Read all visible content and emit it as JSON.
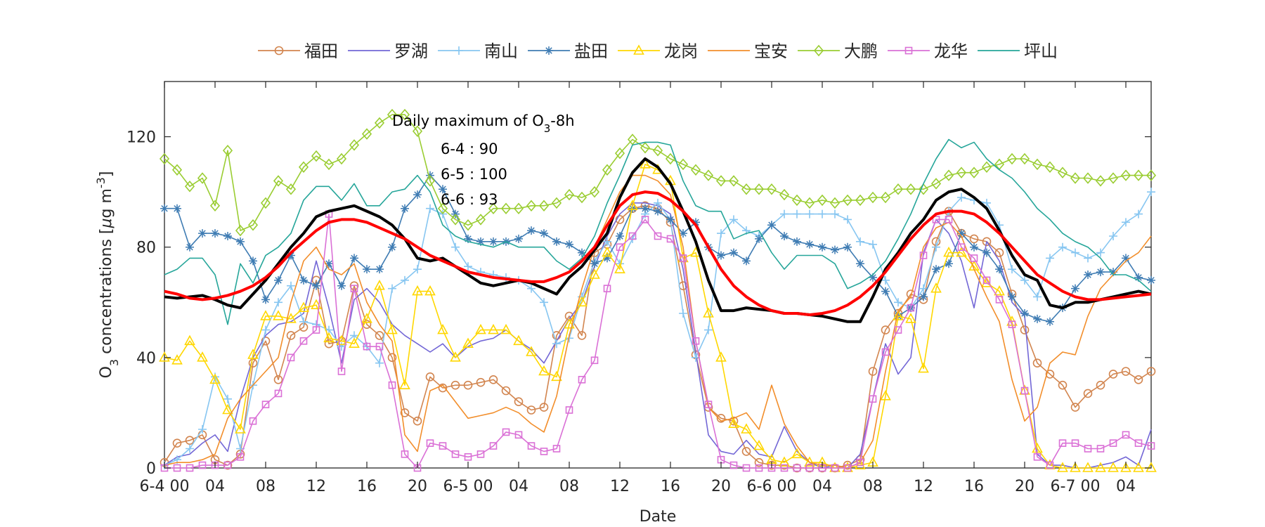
{
  "chart_data": {
    "type": "line",
    "title": "",
    "xlabel": "Date",
    "ylabel": "O3 concentrations [μg m-3]",
    "ylabel_parts": {
      "base": "O",
      "sub": "3",
      "mid": " concentrations [",
      "mu": "μ",
      "unit": "g m",
      "sup": "-3",
      "end": "]"
    },
    "ylim": [
      0,
      140
    ],
    "yticks": [
      0,
      40,
      80,
      120
    ],
    "xlim": [
      0,
      78
    ],
    "grid": false,
    "legend_position": "top",
    "x_ticks": [
      {
        "x": 0,
        "label": "6-4 00"
      },
      {
        "x": 4,
        "label": "04"
      },
      {
        "x": 8,
        "label": "08"
      },
      {
        "x": 12,
        "label": "12"
      },
      {
        "x": 16,
        "label": "16"
      },
      {
        "x": 20,
        "label": "20"
      },
      {
        "x": 24,
        "label": "6-5 00"
      },
      {
        "x": 28,
        "label": "04"
      },
      {
        "x": 32,
        "label": "08"
      },
      {
        "x": 36,
        "label": "12"
      },
      {
        "x": 40,
        "label": "16"
      },
      {
        "x": 44,
        "label": "20"
      },
      {
        "x": 48,
        "label": "6-6 00"
      },
      {
        "x": 52,
        "label": "04"
      },
      {
        "x": 56,
        "label": "08"
      },
      {
        "x": 60,
        "label": "12"
      },
      {
        "x": 64,
        "label": "16"
      },
      {
        "x": 68,
        "label": "20"
      },
      {
        "x": 72,
        "label": "6-7 00"
      },
      {
        "x": 76,
        "label": "04"
      }
    ],
    "annotation": {
      "title_parts": {
        "pre": "Daily maximum of O",
        "sub": "3",
        "post": "-8h"
      },
      "lines": [
        "6-4 : 90",
        "6-5 : 100",
        "6-6 : 93"
      ],
      "x": 18,
      "y": 124
    },
    "series": [
      {
        "name": "福田",
        "color": "#D2854F",
        "marker": "circle",
        "values": [
          2,
          9,
          10,
          12,
          3,
          1,
          5,
          38,
          46,
          32,
          48,
          51,
          68,
          45,
          46,
          66,
          52,
          48,
          40,
          20,
          17,
          33,
          29,
          30,
          30,
          31,
          32,
          28,
          24,
          21,
          22,
          48,
          55,
          48,
          78,
          81,
          90,
          94,
          95,
          94,
          89,
          66,
          41,
          22,
          18,
          17,
          6,
          2,
          1,
          1,
          0,
          0,
          0,
          0,
          1,
          3,
          35,
          50,
          56,
          63,
          61,
          82,
          93,
          85,
          83,
          82,
          78,
          63,
          50,
          38,
          34,
          30,
          22,
          27,
          30,
          34,
          35,
          32,
          35,
          43,
          62
        ]
      },
      {
        "name": "罗湖",
        "color": "#7367D6",
        "marker": "none",
        "values": [
          1,
          4,
          5,
          9,
          12,
          6,
          25,
          40,
          48,
          52,
          53,
          56,
          75,
          58,
          38,
          61,
          65,
          60,
          52,
          48,
          45,
          42,
          45,
          40,
          44,
          46,
          47,
          50,
          46,
          43,
          38,
          46,
          54,
          60,
          73,
          84,
          92,
          96,
          96,
          95,
          92,
          72,
          42,
          12,
          6,
          5,
          10,
          5,
          4,
          15,
          6,
          2,
          0,
          1,
          0,
          5,
          25,
          45,
          34,
          40,
          78,
          90,
          85,
          75,
          58,
          82,
          75,
          60,
          55,
          5,
          1,
          1,
          0,
          0,
          1,
          2,
          4,
          1,
          14,
          14,
          61
        ]
      },
      {
        "name": "南山",
        "color": "#87C6F1",
        "marker": "plus",
        "values": [
          1,
          3,
          7,
          14,
          33,
          25,
          7,
          30,
          50,
          60,
          66,
          53,
          52,
          50,
          44,
          48,
          44,
          38,
          65,
          68,
          72,
          94,
          92,
          80,
          73,
          71,
          70,
          69,
          68,
          65,
          60,
          45,
          47,
          62,
          75,
          82,
          74,
          83,
          92,
          96,
          90,
          56,
          40,
          50,
          85,
          90,
          86,
          84,
          88,
          92,
          92,
          92,
          92,
          92,
          90,
          82,
          81,
          68,
          60,
          58,
          65,
          80,
          93,
          98,
          97,
          96,
          88,
          72,
          68,
          62,
          76,
          80,
          78,
          76,
          78,
          84,
          89,
          92,
          100,
          99,
          86
        ]
      },
      {
        "name": "盐田",
        "color": "#3F7CB3",
        "marker": "asterisk",
        "values": [
          94,
          94,
          80,
          85,
          85,
          84,
          82,
          75,
          61,
          68,
          77,
          68,
          66,
          74,
          66,
          76,
          72,
          72,
          80,
          94,
          99,
          106,
          101,
          92,
          83,
          82,
          82,
          82,
          83,
          86,
          85,
          82,
          81,
          78,
          74,
          76,
          84,
          94,
          94,
          93,
          90,
          85,
          89,
          80,
          77,
          78,
          75,
          83,
          88,
          84,
          82,
          81,
          80,
          79,
          80,
          74,
          69,
          64,
          55,
          58,
          62,
          72,
          74,
          85,
          80,
          78,
          72,
          62,
          56,
          54,
          53,
          58,
          65,
          70,
          71,
          71,
          76,
          69,
          68,
          66,
          63,
          56,
          29,
          48
        ]
      },
      {
        "name": "龙岗",
        "color": "#FFD700",
        "marker": "triangle",
        "values": [
          40,
          39,
          46,
          40,
          32,
          21,
          14,
          41,
          55,
          55,
          54,
          58,
          59,
          47,
          46,
          45,
          54,
          66,
          50,
          30,
          64,
          64,
          50,
          40,
          45,
          50,
          50,
          50,
          46,
          42,
          35,
          33,
          52,
          60,
          70,
          78,
          72,
          95,
          110,
          108,
          104,
          76,
          78,
          56,
          40,
          16,
          14,
          8,
          3,
          2,
          5,
          2,
          2,
          0,
          0,
          1,
          2,
          26,
          55,
          54,
          36,
          65,
          78,
          78,
          73,
          67,
          64,
          53,
          28,
          7,
          1,
          0,
          0,
          0,
          0,
          0,
          0,
          0,
          0,
          2,
          5,
          43
        ]
      },
      {
        "name": "宝安",
        "color": "#F28E2B",
        "marker": "none",
        "values": [
          1,
          2,
          2,
          3,
          5,
          18,
          25,
          30,
          35,
          40,
          60,
          75,
          80,
          72,
          70,
          74,
          60,
          52,
          46,
          12,
          6,
          28,
          30,
          24,
          18,
          19,
          20,
          22,
          20,
          16,
          13,
          26,
          48,
          65,
          80,
          90,
          100,
          106,
          106,
          104,
          99,
          80,
          46,
          22,
          17,
          18,
          20,
          14,
          30,
          16,
          8,
          2,
          1,
          1,
          0,
          2,
          10,
          35,
          57,
          62,
          80,
          87,
          89,
          84,
          72,
          62,
          53,
          32,
          17,
          22,
          38,
          42,
          41,
          55,
          65,
          70,
          75,
          78,
          84,
          84,
          75,
          86
        ]
      },
      {
        "name": "大鹏",
        "color": "#9ACD32",
        "marker": "diamond",
        "values": [
          112,
          108,
          102,
          105,
          95,
          115,
          86,
          88,
          96,
          104,
          101,
          109,
          113,
          110,
          112,
          117,
          121,
          125,
          128,
          128,
          122,
          104,
          94,
          90,
          88,
          90,
          94,
          94,
          94,
          95,
          95,
          96,
          99,
          98,
          100,
          108,
          114,
          119,
          116,
          115,
          112,
          110,
          108,
          106,
          104,
          104,
          101,
          101,
          101,
          99,
          97,
          96,
          97,
          96,
          97,
          97,
          98,
          98,
          101,
          101,
          101,
          103,
          106,
          107,
          107,
          109,
          110,
          112,
          112,
          110,
          109,
          107,
          105,
          105,
          104,
          105,
          106,
          106,
          106,
          106,
          107,
          108,
          109
        ]
      },
      {
        "name": "龙华",
        "color": "#DA70D6",
        "marker": "square",
        "values": [
          0,
          0,
          0,
          1,
          1,
          1,
          4,
          17,
          23,
          27,
          40,
          46,
          50,
          92,
          35,
          65,
          44,
          44,
          30,
          5,
          0,
          9,
          8,
          5,
          4,
          5,
          8,
          13,
          12,
          8,
          6,
          7,
          21,
          32,
          39,
          65,
          80,
          84,
          90,
          84,
          83,
          76,
          46,
          23,
          3,
          1,
          0,
          0,
          0,
          0,
          0,
          0,
          0,
          0,
          0,
          2,
          25,
          42,
          50,
          58,
          77,
          90,
          90,
          80,
          76,
          68,
          61,
          52,
          28,
          4,
          1,
          9,
          9,
          7,
          7,
          9,
          12,
          9,
          8,
          7,
          10,
          10,
          59
        ]
      },
      {
        "name": "坪山",
        "color": "#26A69A",
        "marker": "none",
        "values": [
          70,
          72,
          76,
          76,
          70,
          52,
          74,
          67,
          77,
          80,
          85,
          97,
          102,
          102,
          97,
          103,
          95,
          95,
          100,
          101,
          106,
          100,
          88,
          84,
          82,
          81,
          80,
          82,
          80,
          80,
          80,
          75,
          72,
          76,
          84,
          96,
          106,
          117,
          118,
          118,
          117,
          104,
          95,
          93,
          93,
          83,
          85,
          86,
          78,
          72,
          77,
          77,
          77,
          74,
          65,
          67,
          70,
          75,
          83,
          92,
          103,
          112,
          119,
          116,
          118,
          112,
          108,
          105,
          100,
          94,
          90,
          85,
          82,
          80,
          76,
          70,
          70,
          68,
          64,
          60,
          55,
          80
        ]
      },
      {
        "name": "",
        "color": "#000000",
        "marker": "none",
        "width": 4,
        "legend": false,
        "values": [
          62,
          61.5,
          62,
          62.5,
          61,
          59,
          58,
          63,
          68,
          74,
          80,
          85,
          91,
          93,
          94,
          95,
          93,
          91,
          88,
          83,
          76,
          75,
          76,
          73,
          70,
          67,
          66,
          67,
          68,
          67,
          65,
          63,
          69,
          73,
          79,
          85,
          98,
          107,
          112,
          109,
          103,
          93,
          82,
          68,
          57,
          57,
          58,
          57.5,
          57,
          56,
          56,
          55.5,
          55,
          54,
          53,
          53,
          62,
          72,
          78,
          85,
          90,
          97,
          100,
          101,
          98,
          94,
          86,
          77,
          70,
          68,
          59,
          58,
          60,
          60,
          61,
          62,
          63,
          64,
          63,
          64,
          64,
          63
        ]
      },
      {
        "name": "",
        "color": "#FF0000",
        "marker": "none",
        "width": 4,
        "legend": false,
        "smooth": true,
        "values": [
          64,
          63,
          61.5,
          61,
          61.5,
          62.5,
          64,
          66,
          69,
          73,
          78,
          82,
          86,
          89,
          90,
          90,
          89,
          87,
          85,
          83,
          80,
          77,
          75,
          73,
          71,
          70,
          69,
          68.5,
          68,
          67.5,
          67.5,
          69,
          71,
          75,
          80,
          88,
          95,
          99,
          100,
          99.5,
          97,
          93,
          88,
          80,
          72,
          66,
          62,
          59,
          57,
          56,
          56,
          55.5,
          56,
          57,
          59,
          62,
          66,
          71,
          77,
          83,
          88,
          92,
          93,
          93,
          92,
          89,
          85,
          80,
          75,
          70,
          67,
          64,
          62,
          61,
          61,
          61.5,
          62,
          62.5,
          63,
          63,
          63
        ]
      }
    ]
  }
}
